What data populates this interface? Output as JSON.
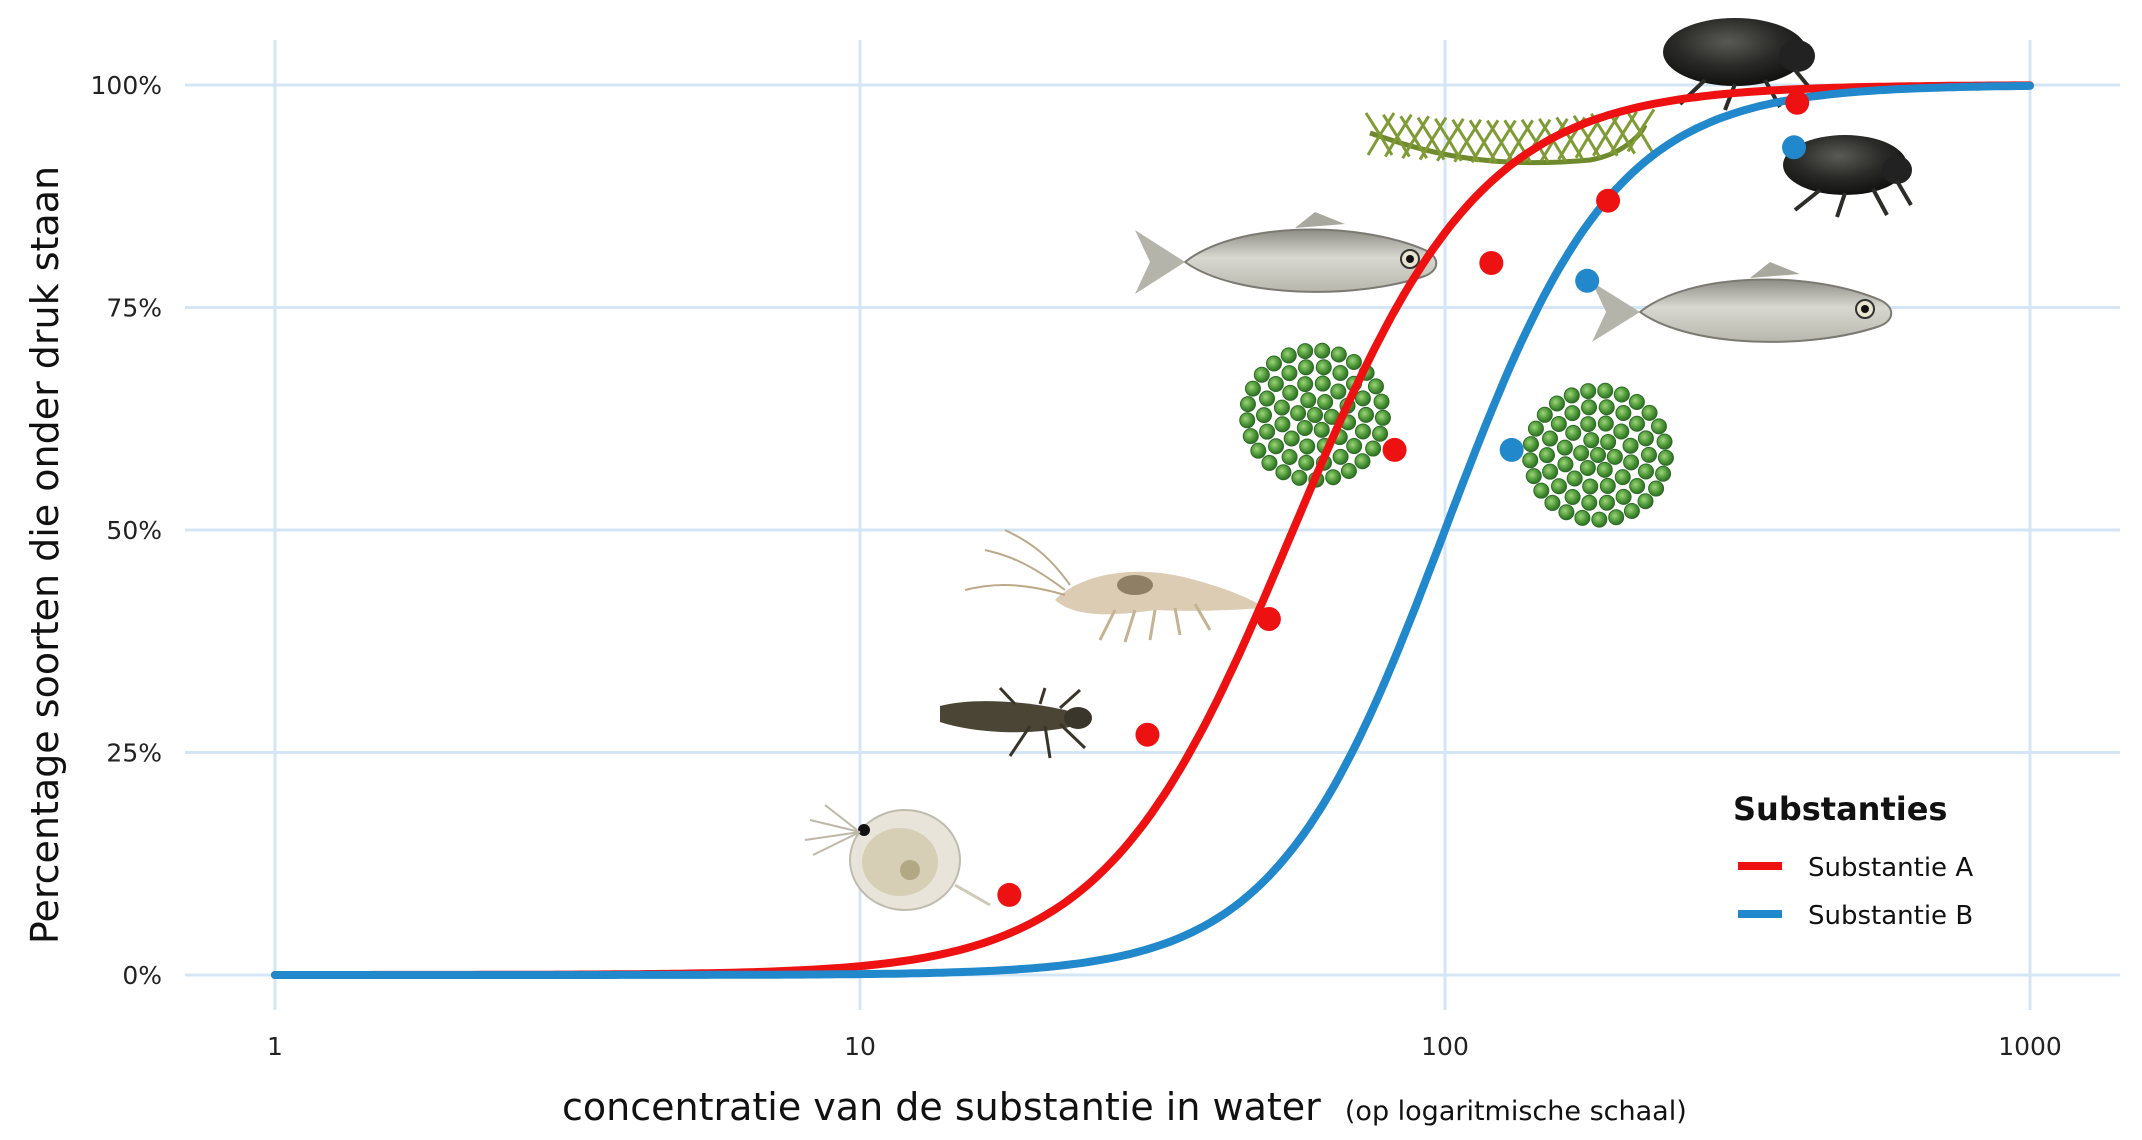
{
  "chart_data": {
    "type": "line",
    "xlabel": "concentratie van de substantie in water",
    "xlabel_note": "(op logaritmische schaal)",
    "ylabel": "Percentage soorten die onder druk staan",
    "x_scale": "log",
    "x_ticks": [
      1,
      10,
      100,
      1000
    ],
    "x_tick_labels": [
      "1",
      "10",
      "100",
      "1000"
    ],
    "xlim": [
      1,
      1000
    ],
    "y_ticks": [
      0,
      25,
      50,
      75,
      100
    ],
    "y_tick_labels": [
      "0%",
      "25%",
      "50%",
      "75%",
      "100%"
    ],
    "ylim": [
      0,
      100
    ],
    "grid": true,
    "legend": {
      "title": "Substanties",
      "position": "bottom-right"
    },
    "series": [
      {
        "name": "Substantie A",
        "color": "#ee1111",
        "curve": {
          "model": "log-logistic",
          "ec50": 55,
          "slope": 2.7
        },
        "points": [
          {
            "x": 18,
            "y": 9,
            "organism": "watervlo"
          },
          {
            "x": 31,
            "y": 27,
            "organism": "libellenlarve"
          },
          {
            "x": 50,
            "y": 40,
            "organism": "garnaal"
          },
          {
            "x": 82,
            "y": 59,
            "organism": "algen"
          },
          {
            "x": 120,
            "y": 80,
            "organism": "vis"
          },
          {
            "x": 190,
            "y": 87,
            "organism": "waterplant"
          },
          {
            "x": 400,
            "y": 98,
            "organism": "kever"
          }
        ]
      },
      {
        "name": "Substantie B",
        "color": "#2288cc",
        "curve": {
          "model": "log-logistic",
          "ec50": 100,
          "slope": 3.0
        },
        "points": [
          {
            "x": 130,
            "y": 59,
            "organism": "algen"
          },
          {
            "x": 175,
            "y": 78,
            "organism": "vis"
          },
          {
            "x": 395,
            "y": 93,
            "organism": "kever"
          }
        ]
      }
    ]
  }
}
